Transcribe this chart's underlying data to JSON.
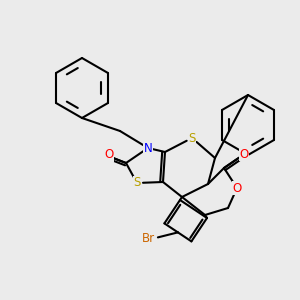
{
  "background_color": "#ebebeb",
  "fig_size": [
    3.0,
    3.0
  ],
  "dpi": 100,
  "atom_colors": {
    "N": "#0000ff",
    "O": "#ff0000",
    "S": "#b8a000",
    "Br": "#cc6600",
    "C": "#000000"
  },
  "lw": 1.5,
  "font_size": 8.5
}
